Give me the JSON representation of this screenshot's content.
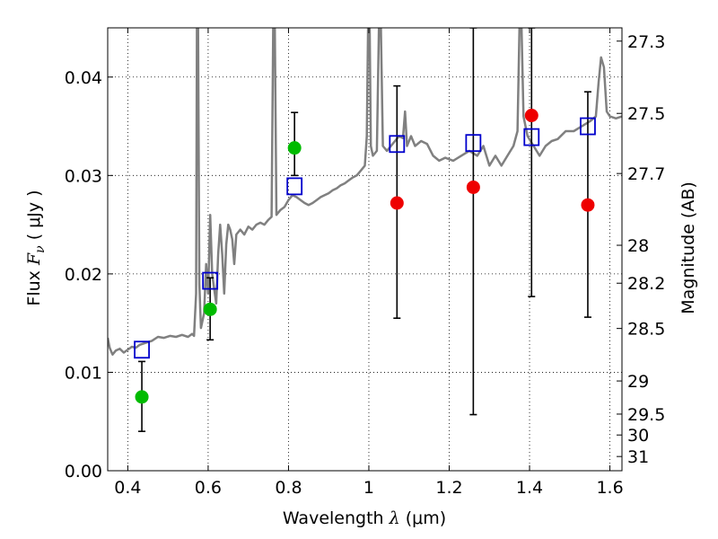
{
  "chart_data": {
    "type": "scatter",
    "xlabel": {
      "prefix": "Wavelength  ",
      "symbol": "λ",
      "unit": " (μm)"
    },
    "ylabel": {
      "prefix": "Flux  ",
      "symbol": "F",
      "subscript": "ν",
      "unit": "  ( μJy )"
    },
    "ylabel_right": "Magnitude (AB)",
    "xlim": [
      0.35,
      1.63
    ],
    "ylim": [
      0.0,
      0.045
    ],
    "x_ticks": [
      0.4,
      0.6,
      0.8,
      1.0,
      1.2,
      1.4,
      1.6
    ],
    "x_tick_labels": [
      "0.4",
      "0.6",
      "0.8",
      "1",
      "1.2",
      "1.4",
      "1.6"
    ],
    "y_ticks": [
      0.0,
      0.01,
      0.02,
      0.03,
      0.04
    ],
    "y_tick_labels": [
      "0.00",
      "0.01",
      "0.02",
      "0.03",
      "0.04"
    ],
    "right_ticks": [
      {
        "label": "27.3",
        "mag": 27.3
      },
      {
        "label": "27.5",
        "mag": 27.5
      },
      {
        "label": "27.7",
        "mag": 27.7
      },
      {
        "label": "28",
        "mag": 28.0
      },
      {
        "label": "28.2",
        "mag": 28.2
      },
      {
        "label": "28.5",
        "mag": 28.5
      },
      {
        "label": "29",
        "mag": 29.0
      },
      {
        "label": "29.5",
        "mag": 29.5
      },
      {
        "label": "30",
        "mag": 30.0
      },
      {
        "label": "31",
        "mag": 31.0
      }
    ],
    "grid": true,
    "colors": {
      "spectrum": "#808080",
      "model": "#0000cc",
      "detection": "#00bb00",
      "upper": "#ee0000",
      "errorbar": "#000000"
    },
    "series": [
      {
        "kind": "line",
        "points": [
          [
            0.35,
            0.0135
          ],
          [
            0.355,
            0.0125
          ],
          [
            0.362,
            0.0118
          ],
          [
            0.37,
            0.0122
          ],
          [
            0.38,
            0.0124
          ],
          [
            0.39,
            0.012
          ],
          [
            0.4,
            0.0123
          ],
          [
            0.41,
            0.0126
          ],
          [
            0.42,
            0.0125
          ],
          [
            0.43,
            0.0128
          ],
          [
            0.445,
            0.013
          ],
          [
            0.46,
            0.0132
          ],
          [
            0.475,
            0.0136
          ],
          [
            0.49,
            0.0135
          ],
          [
            0.505,
            0.0137
          ],
          [
            0.52,
            0.0136
          ],
          [
            0.535,
            0.0138
          ],
          [
            0.55,
            0.0136
          ],
          [
            0.56,
            0.0139
          ],
          [
            0.565,
            0.0137
          ],
          [
            0.57,
            0.018
          ],
          [
            0.572,
            0.045
          ],
          [
            0.575,
            0.045
          ],
          [
            0.578,
            0.019
          ],
          [
            0.582,
            0.0145
          ],
          [
            0.59,
            0.016
          ],
          [
            0.595,
            0.021
          ],
          [
            0.6,
            0.018
          ],
          [
            0.605,
            0.026
          ],
          [
            0.61,
            0.02
          ],
          [
            0.615,
            0.0185
          ],
          [
            0.62,
            0.017
          ],
          [
            0.625,
            0.022
          ],
          [
            0.63,
            0.025
          ],
          [
            0.635,
            0.022
          ],
          [
            0.64,
            0.018
          ],
          [
            0.645,
            0.023
          ],
          [
            0.65,
            0.025
          ],
          [
            0.655,
            0.0245
          ],
          [
            0.66,
            0.0235
          ],
          [
            0.665,
            0.021
          ],
          [
            0.67,
            0.024
          ],
          [
            0.68,
            0.0245
          ],
          [
            0.69,
            0.024
          ],
          [
            0.7,
            0.0248
          ],
          [
            0.71,
            0.0245
          ],
          [
            0.72,
            0.025
          ],
          [
            0.73,
            0.0252
          ],
          [
            0.74,
            0.025
          ],
          [
            0.75,
            0.0255
          ],
          [
            0.758,
            0.0258
          ],
          [
            0.762,
            0.045
          ],
          [
            0.766,
            0.045
          ],
          [
            0.77,
            0.026
          ],
          [
            0.78,
            0.0265
          ],
          [
            0.79,
            0.0268
          ],
          [
            0.8,
            0.0275
          ],
          [
            0.81,
            0.028
          ],
          [
            0.82,
            0.0278
          ],
          [
            0.83,
            0.0275
          ],
          [
            0.84,
            0.0272
          ],
          [
            0.85,
            0.027
          ],
          [
            0.86,
            0.0272
          ],
          [
            0.87,
            0.0275
          ],
          [
            0.88,
            0.0278
          ],
          [
            0.89,
            0.028
          ],
          [
            0.9,
            0.0282
          ],
          [
            0.91,
            0.0285
          ],
          [
            0.92,
            0.0287
          ],
          [
            0.93,
            0.029
          ],
          [
            0.94,
            0.0292
          ],
          [
            0.95,
            0.0295
          ],
          [
            0.96,
            0.0298
          ],
          [
            0.97,
            0.03
          ],
          [
            0.98,
            0.0305
          ],
          [
            0.99,
            0.031
          ],
          [
            0.995,
            0.034
          ],
          [
            0.998,
            0.045
          ],
          [
            1.002,
            0.045
          ],
          [
            1.005,
            0.033
          ],
          [
            1.01,
            0.032
          ],
          [
            1.02,
            0.0325
          ],
          [
            1.025,
            0.045
          ],
          [
            1.03,
            0.045
          ],
          [
            1.035,
            0.033
          ],
          [
            1.045,
            0.0325
          ],
          [
            1.055,
            0.033
          ],
          [
            1.065,
            0.0335
          ],
          [
            1.075,
            0.034
          ],
          [
            1.085,
            0.0338
          ],
          [
            1.09,
            0.0365
          ],
          [
            1.095,
            0.033
          ],
          [
            1.105,
            0.034
          ],
          [
            1.115,
            0.033
          ],
          [
            1.13,
            0.0335
          ],
          [
            1.145,
            0.0332
          ],
          [
            1.16,
            0.032
          ],
          [
            1.175,
            0.0315
          ],
          [
            1.19,
            0.0318
          ],
          [
            1.21,
            0.0315
          ],
          [
            1.23,
            0.032
          ],
          [
            1.25,
            0.0325
          ],
          [
            1.27,
            0.032
          ],
          [
            1.285,
            0.033
          ],
          [
            1.3,
            0.031
          ],
          [
            1.315,
            0.032
          ],
          [
            1.33,
            0.031
          ],
          [
            1.345,
            0.032
          ],
          [
            1.36,
            0.033
          ],
          [
            1.37,
            0.0345
          ],
          [
            1.375,
            0.045
          ],
          [
            1.38,
            0.045
          ],
          [
            1.385,
            0.036
          ],
          [
            1.395,
            0.034
          ],
          [
            1.41,
            0.033
          ],
          [
            1.425,
            0.032
          ],
          [
            1.44,
            0.033
          ],
          [
            1.455,
            0.0335
          ],
          [
            1.47,
            0.0337
          ],
          [
            1.49,
            0.0345
          ],
          [
            1.51,
            0.0345
          ],
          [
            1.53,
            0.035
          ],
          [
            1.55,
            0.0355
          ],
          [
            1.565,
            0.036
          ],
          [
            1.572,
            0.0395
          ],
          [
            1.578,
            0.042
          ],
          [
            1.585,
            0.041
          ],
          [
            1.592,
            0.0365
          ],
          [
            1.6,
            0.036
          ],
          [
            1.615,
            0.0358
          ],
          [
            1.63,
            0.036
          ]
        ]
      },
      {
        "kind": "model",
        "x": [
          0.435,
          0.605,
          0.815,
          1.07,
          1.26,
          1.405,
          1.545
        ],
        "y": [
          0.0123,
          0.0193,
          0.0289,
          0.0332,
          0.0333,
          0.0339,
          0.035
        ]
      },
      {
        "kind": "detection",
        "x": [
          0.435,
          0.605,
          0.815
        ],
        "y": [
          0.0075,
          0.0164,
          0.0328
        ],
        "yerr_low": [
          0.004,
          0.0133,
          0.03
        ],
        "yerr_high": [
          0.0111,
          0.0196,
          0.0364
        ]
      },
      {
        "kind": "upper",
        "x": [
          1.07,
          1.26,
          1.405,
          1.545
        ],
        "y": [
          0.0272,
          0.0288,
          0.0361,
          0.027
        ],
        "yerr_low": [
          0.0155,
          0.0057,
          0.0177,
          0.0156
        ],
        "yerr_high": [
          0.0391,
          0.045,
          0.045,
          0.0385
        ]
      }
    ]
  }
}
